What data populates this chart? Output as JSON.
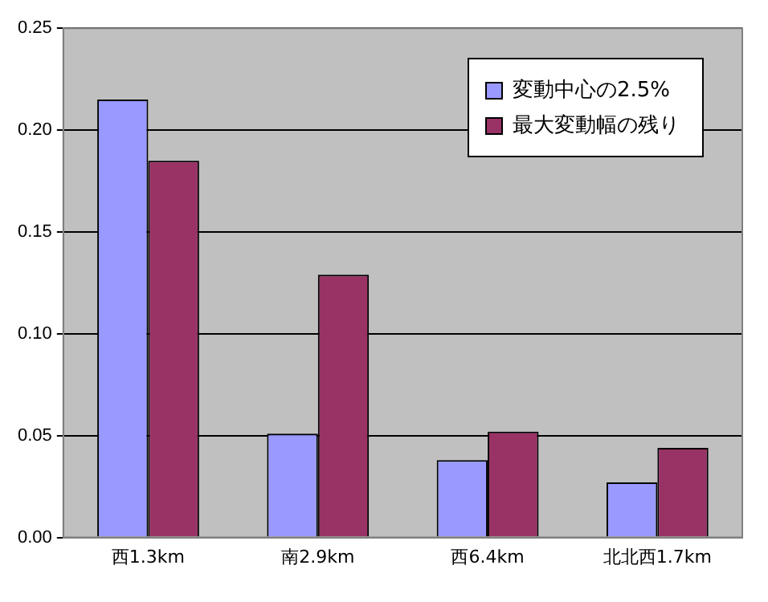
{
  "chart_data": {
    "type": "bar",
    "categories": [
      "西1.3km",
      "南2.9km",
      "西6.4km",
      "北北西1.7km"
    ],
    "series": [
      {
        "name": "変動中心の2.5%",
        "color": "#9999ff",
        "values": [
          0.215,
          0.051,
          0.038,
          0.027
        ]
      },
      {
        "name": "最大変動幅の残り",
        "color": "#993366",
        "values": [
          0.185,
          0.129,
          0.052,
          0.044
        ]
      }
    ],
    "ylim": [
      0,
      0.25
    ],
    "yticks": [
      {
        "value": 0,
        "label": "0.00"
      },
      {
        "value": 0.05,
        "label": "0.05"
      },
      {
        "value": 0.1,
        "label": "0.10"
      },
      {
        "value": 0.15,
        "label": "0.15"
      },
      {
        "value": 0.2,
        "label": "0.20"
      },
      {
        "value": 0.25,
        "label": "0.25"
      }
    ],
    "grid": "y",
    "legend": "top right"
  }
}
